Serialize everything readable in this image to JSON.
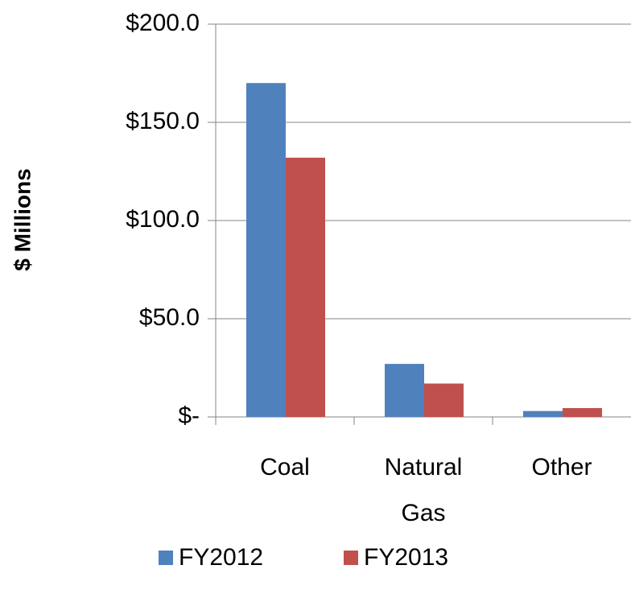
{
  "chart_data": {
    "type": "bar",
    "y_label": "$ Millions",
    "categories": [
      "Coal",
      "Natural Gas",
      "Other"
    ],
    "series": [
      {
        "name": "FY2012",
        "color": "#4f81bd",
        "values": [
          170,
          27,
          3
        ]
      },
      {
        "name": "FY2013",
        "color": "#c0504d",
        "values": [
          132,
          17,
          4.5
        ]
      }
    ],
    "ylim": [
      0,
      200
    ],
    "yticks": [
      {
        "value": 0,
        "label": "$-"
      },
      {
        "value": 50,
        "label": "$50.0"
      },
      {
        "value": 100,
        "label": "$100.0"
      },
      {
        "value": 150,
        "label": "$150.0"
      },
      {
        "value": 200,
        "label": "$200.0"
      }
    ],
    "grid": true,
    "legend": "bottom"
  }
}
